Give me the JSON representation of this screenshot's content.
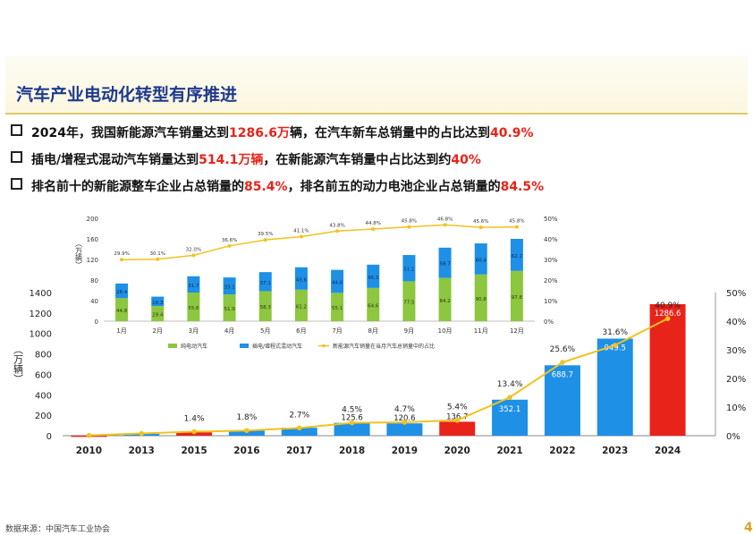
{
  "slide": {
    "title": "汽车产业电动化转型有序推进",
    "bullets": [
      {
        "parts": [
          "2024年，我国新能源汽车销量达到",
          "1286.6万",
          "辆，在汽车新车总销量中的占比达到",
          "40.9%",
          ""
        ]
      },
      {
        "parts": [
          "插电/增程式混动汽车销量达到",
          "514.1万辆",
          "，在新能源汽车销量中占比达到约",
          "40%",
          ""
        ]
      },
      {
        "parts": [
          "排名前十的新能源整车企业占总销量的",
          "85.4%",
          "，排名前五的动力电池企业占总销量的",
          "84.5%",
          ""
        ]
      }
    ],
    "source": "数据来源：中国汽车工业协会",
    "page_number": "4"
  },
  "colors": {
    "bar_blue": "#1e90e6",
    "bar_red": "#e8231a",
    "line_gold": "#f2c21e",
    "inset_green": "#8dc63f",
    "inset_blue": "#1e90e6"
  },
  "chart_data": [
    {
      "type": "bar",
      "title": "",
      "ylabel": "（万辆）",
      "categories": [
        "2010",
        "2013",
        "2015",
        "2016",
        "2017",
        "2018",
        "2019",
        "2020",
        "2021",
        "2022",
        "2023",
        "2024"
      ],
      "values": [
        1.7,
        17.6,
        33.1,
        50.7,
        77.7,
        125.6,
        120.6,
        136.7,
        352.1,
        688.7,
        949.5,
        1286.6
      ],
      "value_labels": [
        "",
        "",
        "",
        "",
        "",
        "125.6",
        "120.6",
        "136.7",
        "352.1",
        "688.7",
        "949.5",
        "1286.6"
      ],
      "highlight": [
        "2010",
        "2015",
        "2020",
        "2024"
      ],
      "ylim": [
        0,
        1400
      ],
      "yticks": [
        "0",
        "200",
        "400",
        "600",
        "800",
        "1000",
        "1200",
        "1400"
      ],
      "series_right": {
        "type": "line",
        "name": "share",
        "values": [
          0.1,
          0.8,
          1.4,
          1.8,
          2.7,
          4.5,
          4.7,
          5.4,
          13.4,
          25.6,
          31.6,
          40.9
        ],
        "labels": [
          "",
          "",
          "1.4%",
          "1.8%",
          "2.7%",
          "4.5%",
          "4.7%",
          "5.4%",
          "13.4%",
          "25.6%",
          "31.6%",
          "40.9%"
        ],
        "ylim": [
          0,
          50
        ],
        "yticks": [
          "0%",
          "10%",
          "20%",
          "30%",
          "40%",
          "50%"
        ]
      }
    },
    {
      "type": "bar",
      "stacked": true,
      "ylabel": "（万辆）",
      "categories": [
        "1月",
        "2月",
        "3月",
        "4月",
        "5月",
        "6月",
        "7月",
        "8月",
        "9月",
        "10月",
        "11月",
        "12月"
      ],
      "ylim": [
        0,
        200
      ],
      "yticks": [
        "0",
        "40",
        "80",
        "120",
        "160",
        "200"
      ],
      "series": [
        {
          "name": "纯电动汽车",
          "values": [
            44.8,
            29.4,
            55.6,
            51.9,
            58.3,
            61.2,
            55.1,
            64.6,
            77.5,
            84.2,
            90.8,
            97.8
          ]
        },
        {
          "name": "插电/增程式混动汽车",
          "values": [
            28.4,
            18.3,
            31.7,
            33.1,
            37.1,
            43.6,
            44.6,
            45.3,
            51.1,
            58.7,
            60.4,
            62.2
          ]
        }
      ],
      "line": {
        "name": "新能源汽车销量在当月汽车总销量中的占比",
        "values": [
          29.9,
          30.1,
          32.0,
          36.6,
          39.5,
          41.1,
          43.8,
          44.8,
          45.8,
          46.8,
          45.6,
          45.8
        ],
        "labels": [
          "29.9%",
          "30.1%",
          "32.0%",
          "36.6%",
          "39.5%",
          "41.1%",
          "43.8%",
          "44.8%",
          "45.8%",
          "46.8%",
          "45.6%",
          "45.8%"
        ],
        "ylim": [
          0,
          50
        ],
        "yticks": [
          "0%",
          "10%",
          "20%",
          "30%",
          "40%",
          "50%"
        ]
      }
    }
  ]
}
